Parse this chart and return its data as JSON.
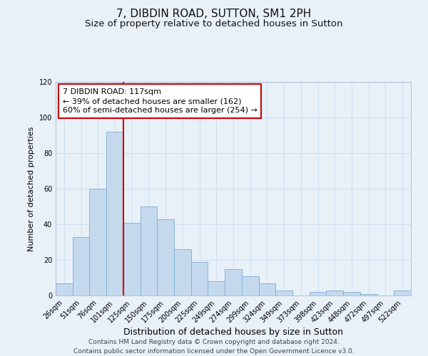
{
  "title": "7, DIBDIN ROAD, SUTTON, SM1 2PH",
  "subtitle": "Size of property relative to detached houses in Sutton",
  "xlabel": "Distribution of detached houses by size in Sutton",
  "ylabel": "Number of detached properties",
  "categories": [
    "26sqm",
    "51sqm",
    "76sqm",
    "101sqm",
    "125sqm",
    "150sqm",
    "175sqm",
    "200sqm",
    "225sqm",
    "249sqm",
    "274sqm",
    "299sqm",
    "324sqm",
    "349sqm",
    "373sqm",
    "398sqm",
    "423sqm",
    "448sqm",
    "472sqm",
    "497sqm",
    "522sqm"
  ],
  "values": [
    7,
    33,
    60,
    92,
    41,
    50,
    43,
    26,
    19,
    8,
    15,
    11,
    7,
    3,
    0,
    2,
    3,
    2,
    1,
    0,
    3
  ],
  "bar_color": "#c5d9ed",
  "bar_edge_color": "#7aaed6",
  "bar_edge_width": 0.6,
  "vline_x_idx": 3.5,
  "vline_color": "#cc0000",
  "annotation_line1": "7 DIBDIN ROAD: 117sqm",
  "annotation_line2": "← 39% of detached houses are smaller (162)",
  "annotation_line3": "60% of semi-detached houses are larger (254) →",
  "annotation_box_facecolor": "#ffffff",
  "annotation_box_edgecolor": "#cc0000",
  "ylim": [
    0,
    120
  ],
  "yticks": [
    0,
    20,
    40,
    60,
    80,
    100,
    120
  ],
  "grid_color": "#d0dff0",
  "background_color": "#e8f0f8",
  "footer_line1": "Contains HM Land Registry data © Crown copyright and database right 2024.",
  "footer_line2": "Contains public sector information licensed under the Open Government Licence v3.0.",
  "title_fontsize": 11,
  "subtitle_fontsize": 9.5,
  "xlabel_fontsize": 9,
  "ylabel_fontsize": 8,
  "tick_fontsize": 7,
  "annotation_fontsize": 8,
  "footer_fontsize": 6.5
}
